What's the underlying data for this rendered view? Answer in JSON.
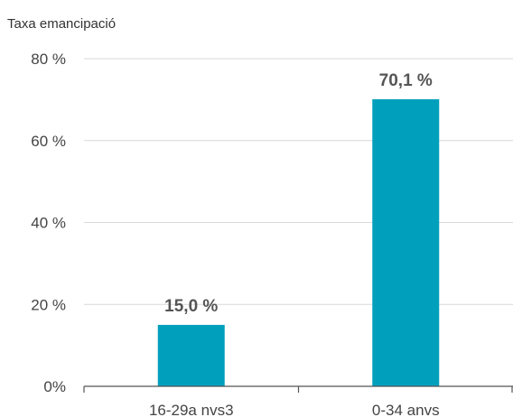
{
  "chart_data": {
    "type": "bar",
    "ylabel": "Taxa emancipació",
    "categories": [
      "16-29a nvs3",
      "0-34 anvs"
    ],
    "values": [
      15.0,
      70.1
    ],
    "data_labels": [
      "15,0 %",
      "70,1 %"
    ],
    "ylim": [
      0,
      80
    ],
    "yticks": [
      {
        "value": 0,
        "label": "0%"
      },
      {
        "value": 20,
        "label": "20 %"
      },
      {
        "value": 40,
        "label": "40 %"
      },
      {
        "value": 60,
        "label": "60 %"
      },
      {
        "value": 80,
        "label": "80 %"
      }
    ],
    "grid": true,
    "bar_color": "#00a0bd"
  }
}
